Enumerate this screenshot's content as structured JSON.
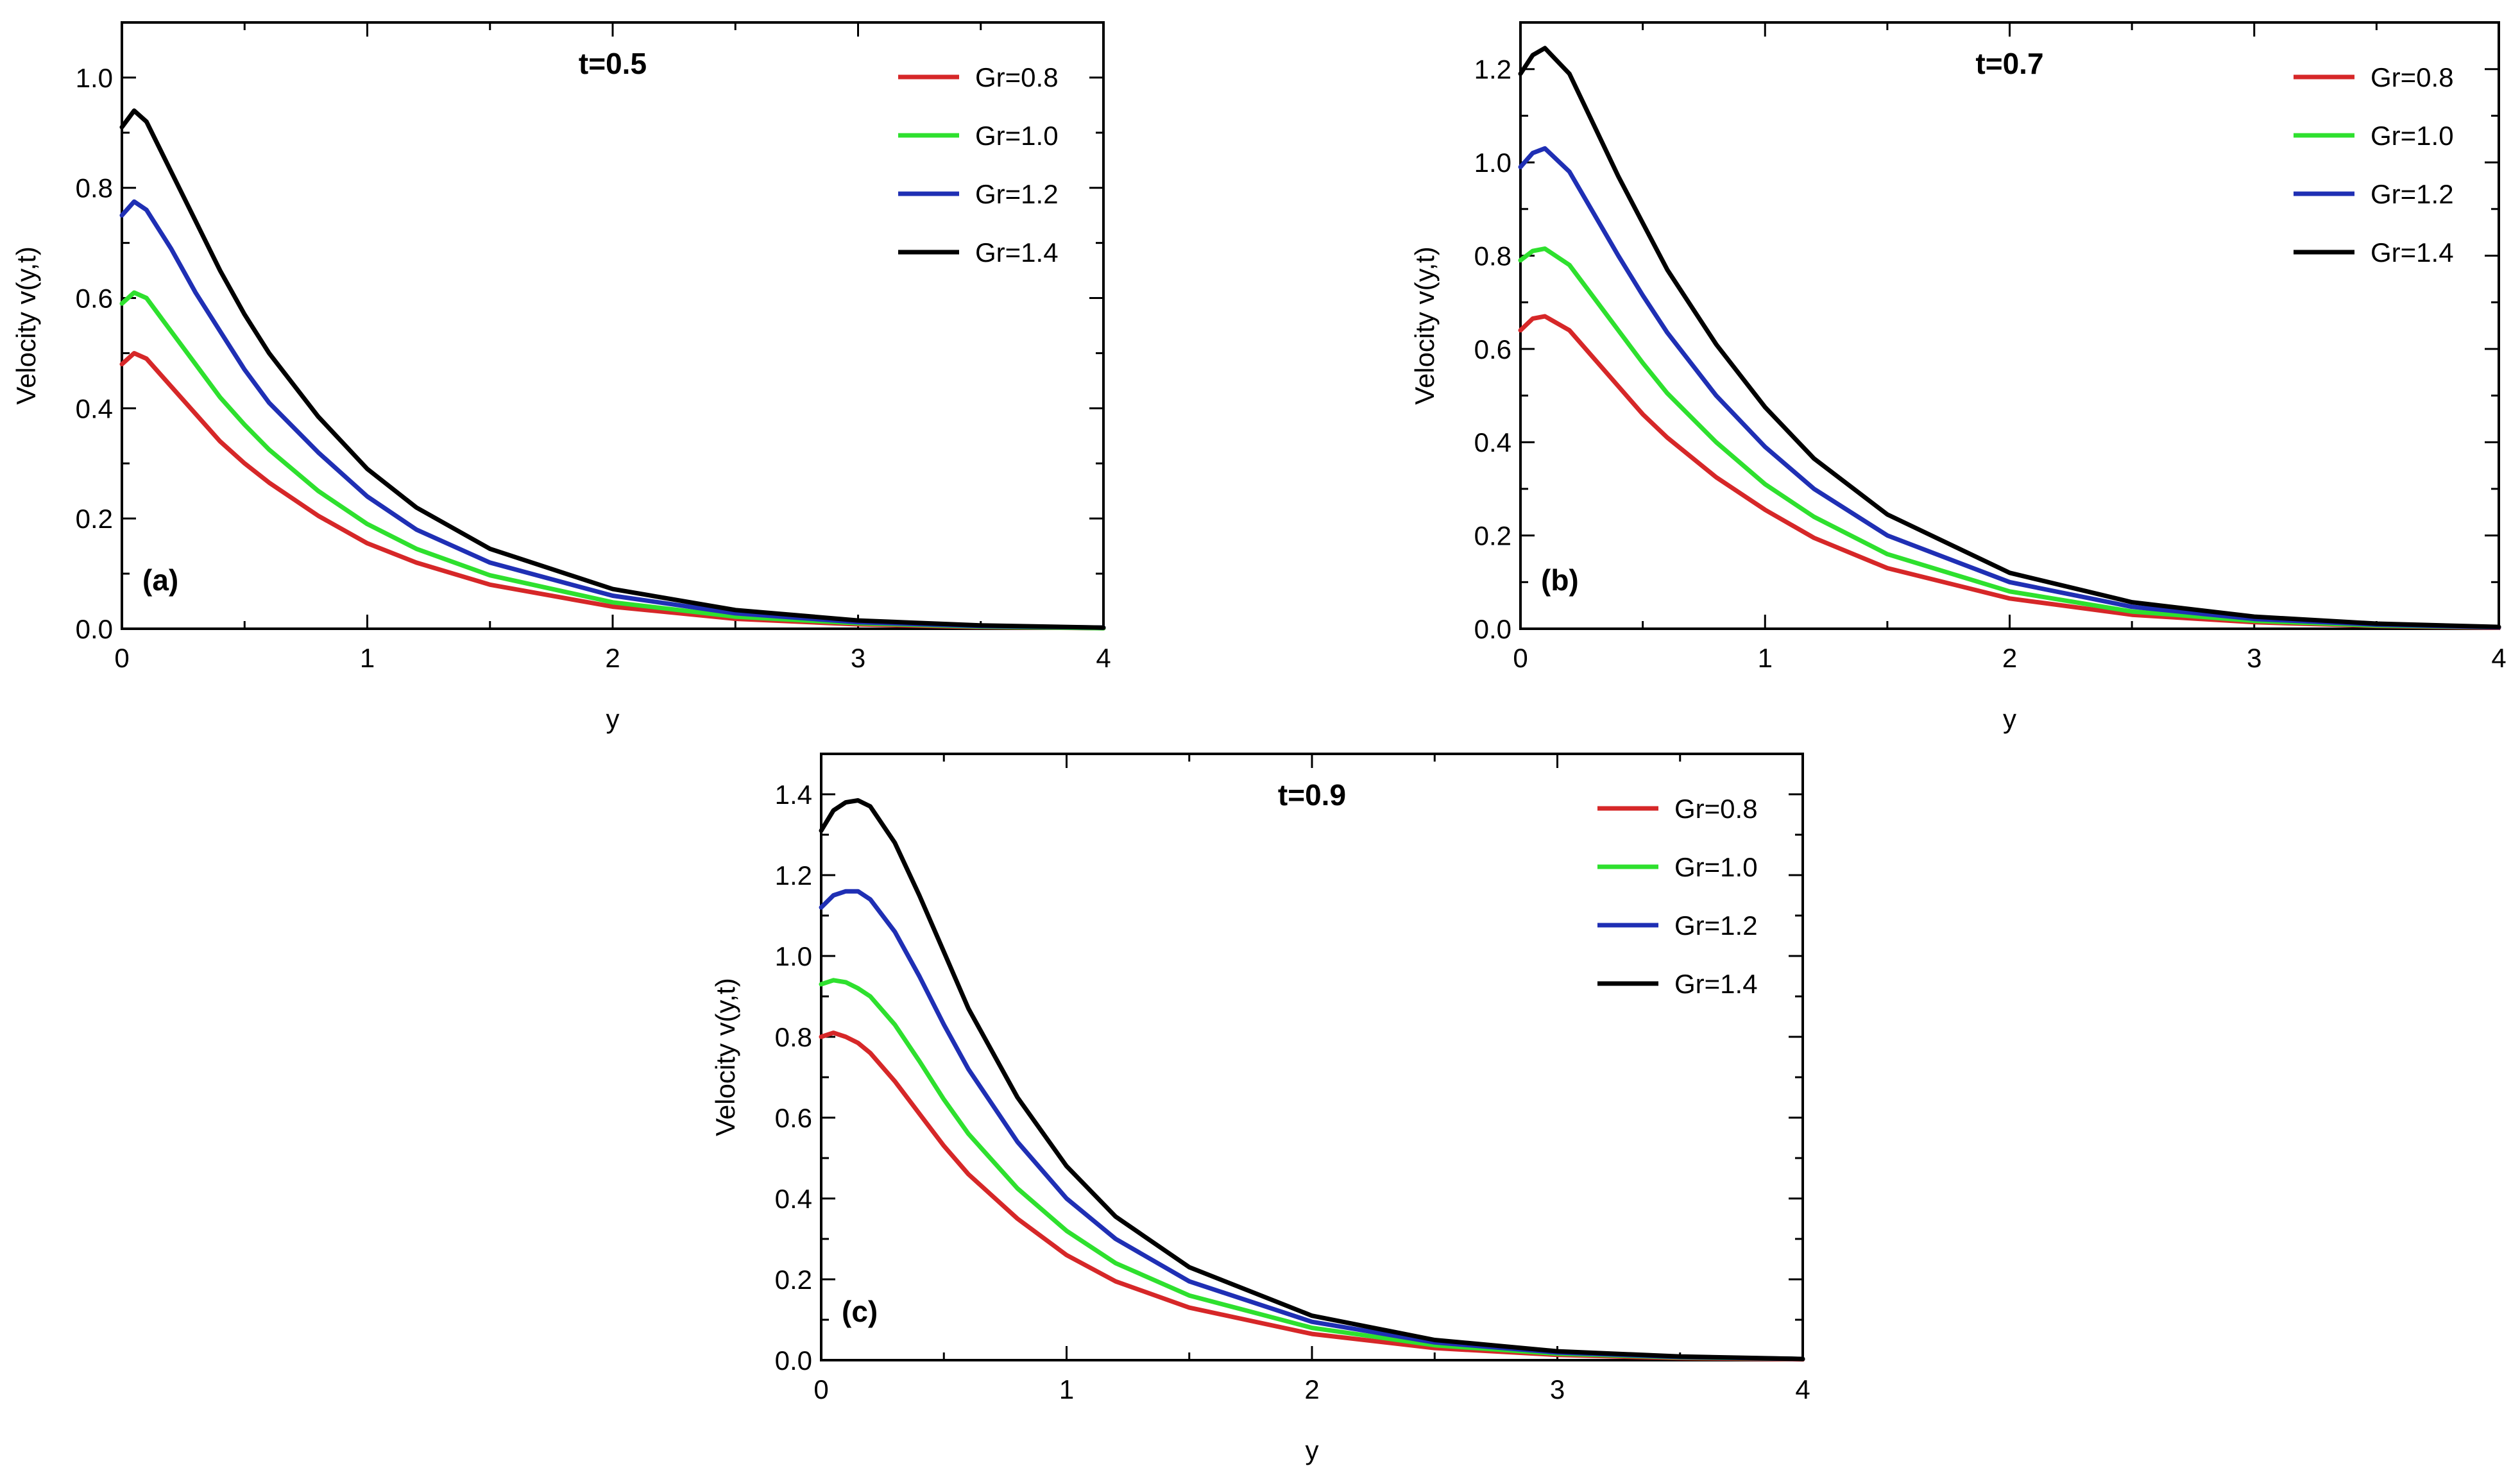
{
  "chart_data": [
    {
      "type": "line",
      "panel_label": "(a)",
      "title": "t=0.5",
      "xlabel": "y",
      "ylabel": "Velocity v(y,t)",
      "xlim": [
        0,
        4
      ],
      "ylim": [
        0,
        1.1
      ],
      "xticks": [
        0,
        1,
        2,
        3,
        4
      ],
      "yticks": [
        0.0,
        0.2,
        0.4,
        0.6,
        0.8,
        1.0
      ],
      "x": [
        0,
        0.05,
        0.1,
        0.2,
        0.3,
        0.4,
        0.5,
        0.6,
        0.8,
        1.0,
        1.2,
        1.5,
        2.0,
        2.5,
        3.0,
        3.5,
        4.0
      ],
      "legend_position": "top-right",
      "grid": false,
      "series": [
        {
          "name": "Gr=0.8",
          "color": "#d62728",
          "values": [
            0.48,
            0.5,
            0.49,
            0.44,
            0.39,
            0.34,
            0.3,
            0.265,
            0.205,
            0.155,
            0.12,
            0.08,
            0.04,
            0.018,
            0.008,
            0.003,
            0.001
          ]
        },
        {
          "name": "Gr=1.0",
          "color": "#2ee02e",
          "values": [
            0.59,
            0.61,
            0.6,
            0.54,
            0.48,
            0.42,
            0.37,
            0.325,
            0.25,
            0.19,
            0.145,
            0.097,
            0.048,
            0.022,
            0.01,
            0.004,
            0.001
          ]
        },
        {
          "name": "Gr=1.2",
          "color": "#1f2fb4",
          "values": [
            0.75,
            0.775,
            0.76,
            0.69,
            0.61,
            0.54,
            0.47,
            0.41,
            0.32,
            0.24,
            0.18,
            0.12,
            0.06,
            0.028,
            0.012,
            0.005,
            0.002
          ]
        },
        {
          "name": "Gr=1.4",
          "color": "#000000",
          "values": [
            0.91,
            0.94,
            0.92,
            0.83,
            0.74,
            0.65,
            0.57,
            0.5,
            0.385,
            0.29,
            0.22,
            0.145,
            0.072,
            0.034,
            0.015,
            0.006,
            0.002
          ]
        }
      ]
    },
    {
      "type": "line",
      "panel_label": "(b)",
      "title": "t=0.7",
      "xlabel": "y",
      "ylabel": "Velocity v(y,t)",
      "xlim": [
        0,
        4
      ],
      "ylim": [
        0,
        1.3
      ],
      "xticks": [
        0,
        1,
        2,
        3,
        4
      ],
      "yticks": [
        0.0,
        0.2,
        0.4,
        0.6,
        0.8,
        1.0,
        1.2
      ],
      "x": [
        0,
        0.05,
        0.1,
        0.2,
        0.3,
        0.4,
        0.5,
        0.6,
        0.8,
        1.0,
        1.2,
        1.5,
        2.0,
        2.5,
        3.0,
        3.5,
        4.0
      ],
      "legend_position": "top-right",
      "grid": false,
      "series": [
        {
          "name": "Gr=0.8",
          "color": "#d62728",
          "values": [
            0.64,
            0.665,
            0.67,
            0.64,
            0.58,
            0.52,
            0.46,
            0.41,
            0.325,
            0.255,
            0.195,
            0.13,
            0.065,
            0.03,
            0.014,
            0.006,
            0.002
          ]
        },
        {
          "name": "Gr=1.0",
          "color": "#2ee02e",
          "values": [
            0.79,
            0.81,
            0.815,
            0.78,
            0.71,
            0.64,
            0.57,
            0.505,
            0.4,
            0.31,
            0.24,
            0.16,
            0.08,
            0.037,
            0.017,
            0.007,
            0.003
          ]
        },
        {
          "name": "Gr=1.2",
          "color": "#1f2fb4",
          "values": [
            0.99,
            1.02,
            1.03,
            0.98,
            0.89,
            0.8,
            0.715,
            0.635,
            0.5,
            0.39,
            0.3,
            0.2,
            0.1,
            0.047,
            0.021,
            0.009,
            0.003
          ]
        },
        {
          "name": "Gr=1.4",
          "color": "#000000",
          "values": [
            1.19,
            1.23,
            1.245,
            1.19,
            1.08,
            0.97,
            0.87,
            0.77,
            0.61,
            0.475,
            0.365,
            0.245,
            0.12,
            0.057,
            0.026,
            0.011,
            0.004
          ]
        }
      ]
    },
    {
      "type": "line",
      "panel_label": "(c)",
      "title": "t=0.9",
      "xlabel": "y",
      "ylabel": "Velocity v(y,t)",
      "xlim": [
        0,
        4
      ],
      "ylim": [
        0,
        1.5
      ],
      "xticks": [
        0,
        1,
        2,
        3,
        4
      ],
      "yticks": [
        0.0,
        0.2,
        0.4,
        0.6,
        0.8,
        1.0,
        1.2,
        1.4
      ],
      "x": [
        0,
        0.05,
        0.1,
        0.15,
        0.2,
        0.3,
        0.4,
        0.5,
        0.6,
        0.8,
        1.0,
        1.2,
        1.5,
        2.0,
        2.5,
        3.0,
        3.5,
        4.0
      ],
      "legend_position": "top-right",
      "grid": false,
      "series": [
        {
          "name": "Gr=0.8",
          "color": "#d62728",
          "values": [
            0.8,
            0.81,
            0.8,
            0.785,
            0.76,
            0.69,
            0.61,
            0.53,
            0.46,
            0.35,
            0.26,
            0.195,
            0.13,
            0.065,
            0.03,
            0.013,
            0.005,
            0.002
          ]
        },
        {
          "name": "Gr=1.0",
          "color": "#2ee02e",
          "values": [
            0.93,
            0.94,
            0.935,
            0.92,
            0.9,
            0.83,
            0.74,
            0.645,
            0.56,
            0.425,
            0.32,
            0.24,
            0.16,
            0.08,
            0.037,
            0.016,
            0.007,
            0.003
          ]
        },
        {
          "name": "Gr=1.2",
          "color": "#1f2fb4",
          "values": [
            1.12,
            1.15,
            1.16,
            1.16,
            1.14,
            1.06,
            0.95,
            0.83,
            0.72,
            0.54,
            0.4,
            0.3,
            0.195,
            0.095,
            0.044,
            0.019,
            0.008,
            0.003
          ]
        },
        {
          "name": "Gr=1.4",
          "color": "#000000",
          "values": [
            1.31,
            1.36,
            1.38,
            1.385,
            1.37,
            1.28,
            1.15,
            1.01,
            0.87,
            0.65,
            0.48,
            0.355,
            0.23,
            0.11,
            0.05,
            0.022,
            0.009,
            0.003
          ]
        }
      ]
    }
  ]
}
